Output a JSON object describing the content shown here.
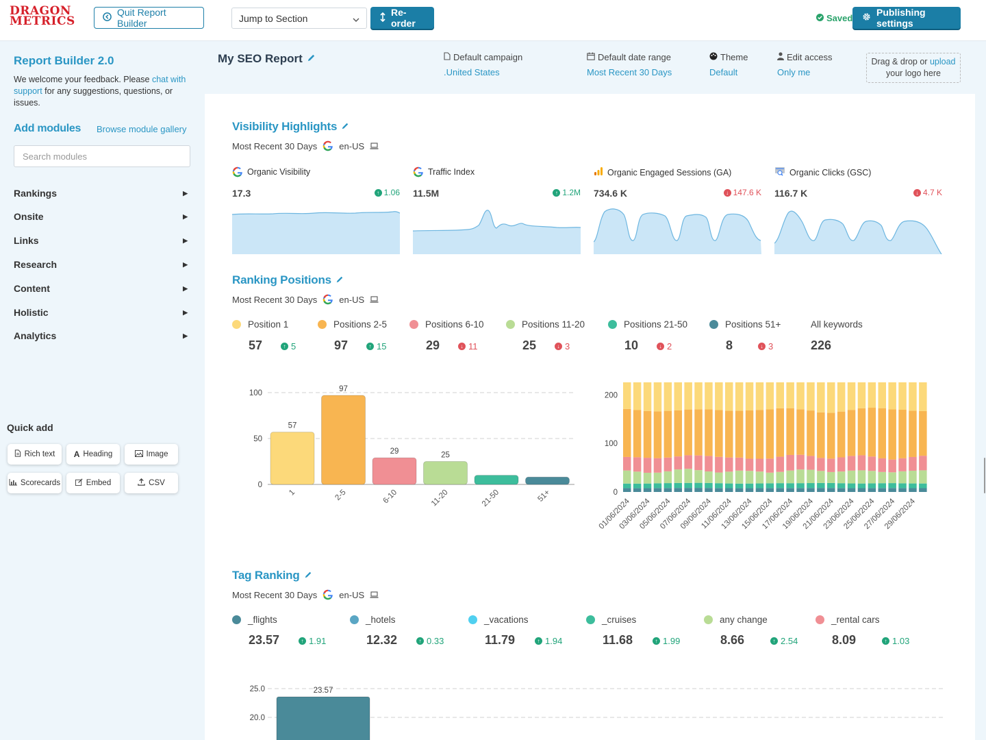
{
  "header": {
    "logo_line1": "DRAGON",
    "logo_line2": "METRICS",
    "quit": "Quit Report Builder",
    "jump": "Jump to Section",
    "reorder": "Re-order",
    "saved": "Saved",
    "publishing": "Publishing settings"
  },
  "sidebar": {
    "title": "Report Builder 2.0",
    "desc_pre": "We welcome your feedback. Please ",
    "desc_link": "chat with support",
    "desc_post": " for any suggestions, questions, or issues.",
    "add_modules": "Add modules",
    "browse": "Browse module gallery",
    "search_placeholder": "Search modules",
    "categories": [
      "Rankings",
      "Onsite",
      "Links",
      "Research",
      "Content",
      "Holistic",
      "Analytics"
    ],
    "quick_add_title": "Quick add",
    "quick_add": [
      "Rich text",
      "Heading",
      "Image",
      "Scorecards",
      "Embed",
      "CSV"
    ]
  },
  "report": {
    "title": "My SEO Report",
    "meta": [
      {
        "label": "Default campaign",
        "value": ".United States"
      },
      {
        "label": "Default date range",
        "value": "Most Recent 30 Days"
      },
      {
        "label": "Theme",
        "value": "Default"
      },
      {
        "label": "Edit access",
        "value": "Only me"
      }
    ],
    "logo_drop_pre": "Drag & drop or ",
    "logo_drop_link": "upload",
    "logo_drop_post": "your logo here"
  },
  "visibility": {
    "title": "Visibility Highlights",
    "date": "Most Recent 30 Days",
    "locale": "en-US",
    "cards": [
      {
        "label": "Organic Visibility",
        "value": "17.3",
        "change": "1.06",
        "dir": "up"
      },
      {
        "label": "Traffic Index",
        "value": "11.5M",
        "change": "1.2M",
        "dir": "up"
      },
      {
        "label": "Organic Engaged Sessions (GA)",
        "value": "734.6 K",
        "change": "147.6 K",
        "dir": "down"
      },
      {
        "label": "Organic Clicks (GSC)",
        "value": "116.7 K",
        "change": "4.7 K",
        "dir": "down"
      }
    ]
  },
  "ranking": {
    "title": "Ranking Positions",
    "date": "Most Recent 30 Days",
    "locale": "en-US",
    "legend": [
      {
        "label": "Position 1",
        "value": "57",
        "change": "5",
        "dir": "up",
        "color": "#fcd97a"
      },
      {
        "label": "Positions 2-5",
        "value": "97",
        "change": "15",
        "dir": "up",
        "color": "#f8b551"
      },
      {
        "label": "Positions 6-10",
        "value": "29",
        "change": "11",
        "dir": "down",
        "color": "#f08f94"
      },
      {
        "label": "Positions 11-20",
        "value": "25",
        "change": "3",
        "dir": "down",
        "color": "#b9dc95"
      },
      {
        "label": "Positions 21-50",
        "value": "10",
        "change": "2",
        "dir": "down",
        "color": "#3dbd9c"
      },
      {
        "label": "Positions 51+",
        "value": "8",
        "change": "3",
        "dir": "down",
        "color": "#4a8a99"
      }
    ],
    "all_label": "All keywords",
    "all_value": "226"
  },
  "tag": {
    "title": "Tag Ranking",
    "date": "Most Recent 30 Days",
    "locale": "en-US",
    "legend": [
      {
        "label": "_flights",
        "value": "23.57",
        "change": "1.91",
        "color": "#4a8a99"
      },
      {
        "label": "_hotels",
        "value": "12.32",
        "change": "0.33",
        "color": "#5aa6c4"
      },
      {
        "label": "_vacations",
        "value": "11.79",
        "change": "1.94",
        "color": "#50d0f0"
      },
      {
        "label": "_cruises",
        "value": "11.68",
        "change": "1.99",
        "color": "#3dbd9c"
      },
      {
        "label": "any change",
        "value": "8.66",
        "change": "2.54",
        "color": "#b9dc95"
      },
      {
        "label": "_rental cars",
        "value": "8.09",
        "change": "1.03",
        "color": "#f08f94"
      }
    ]
  },
  "chart_data": [
    {
      "type": "bar",
      "categories": [
        "1",
        "2-5",
        "6-10",
        "11-20",
        "21-50",
        "51+"
      ],
      "values": [
        57,
        97,
        29,
        25,
        10,
        8
      ],
      "data_labels": [
        "57",
        "97",
        "29",
        "25",
        "",
        ""
      ],
      "ylim": [
        0,
        100
      ],
      "yticks": [
        0,
        50,
        100
      ]
    },
    {
      "type": "bar",
      "stacked": true,
      "categories": [
        "01/06/2024",
        "03/06/2024",
        "05/06/2024",
        "07/06/2024",
        "09/06/2024",
        "11/06/2024",
        "13/06/2024",
        "15/06/2024",
        "17/06/2024",
        "19/06/2024",
        "21/06/2024",
        "23/06/2024",
        "25/06/2024",
        "27/06/2024",
        "29/06/2024"
      ],
      "ylim": [
        0,
        226
      ],
      "yticks": [
        0,
        100,
        200
      ],
      "total": 226
    },
    {
      "type": "bar",
      "categories": [
        "_flights"
      ],
      "values": [
        23.57
      ],
      "data_labels": [
        "23.57"
      ],
      "yticks": [
        "20.0",
        "25.0"
      ]
    }
  ]
}
